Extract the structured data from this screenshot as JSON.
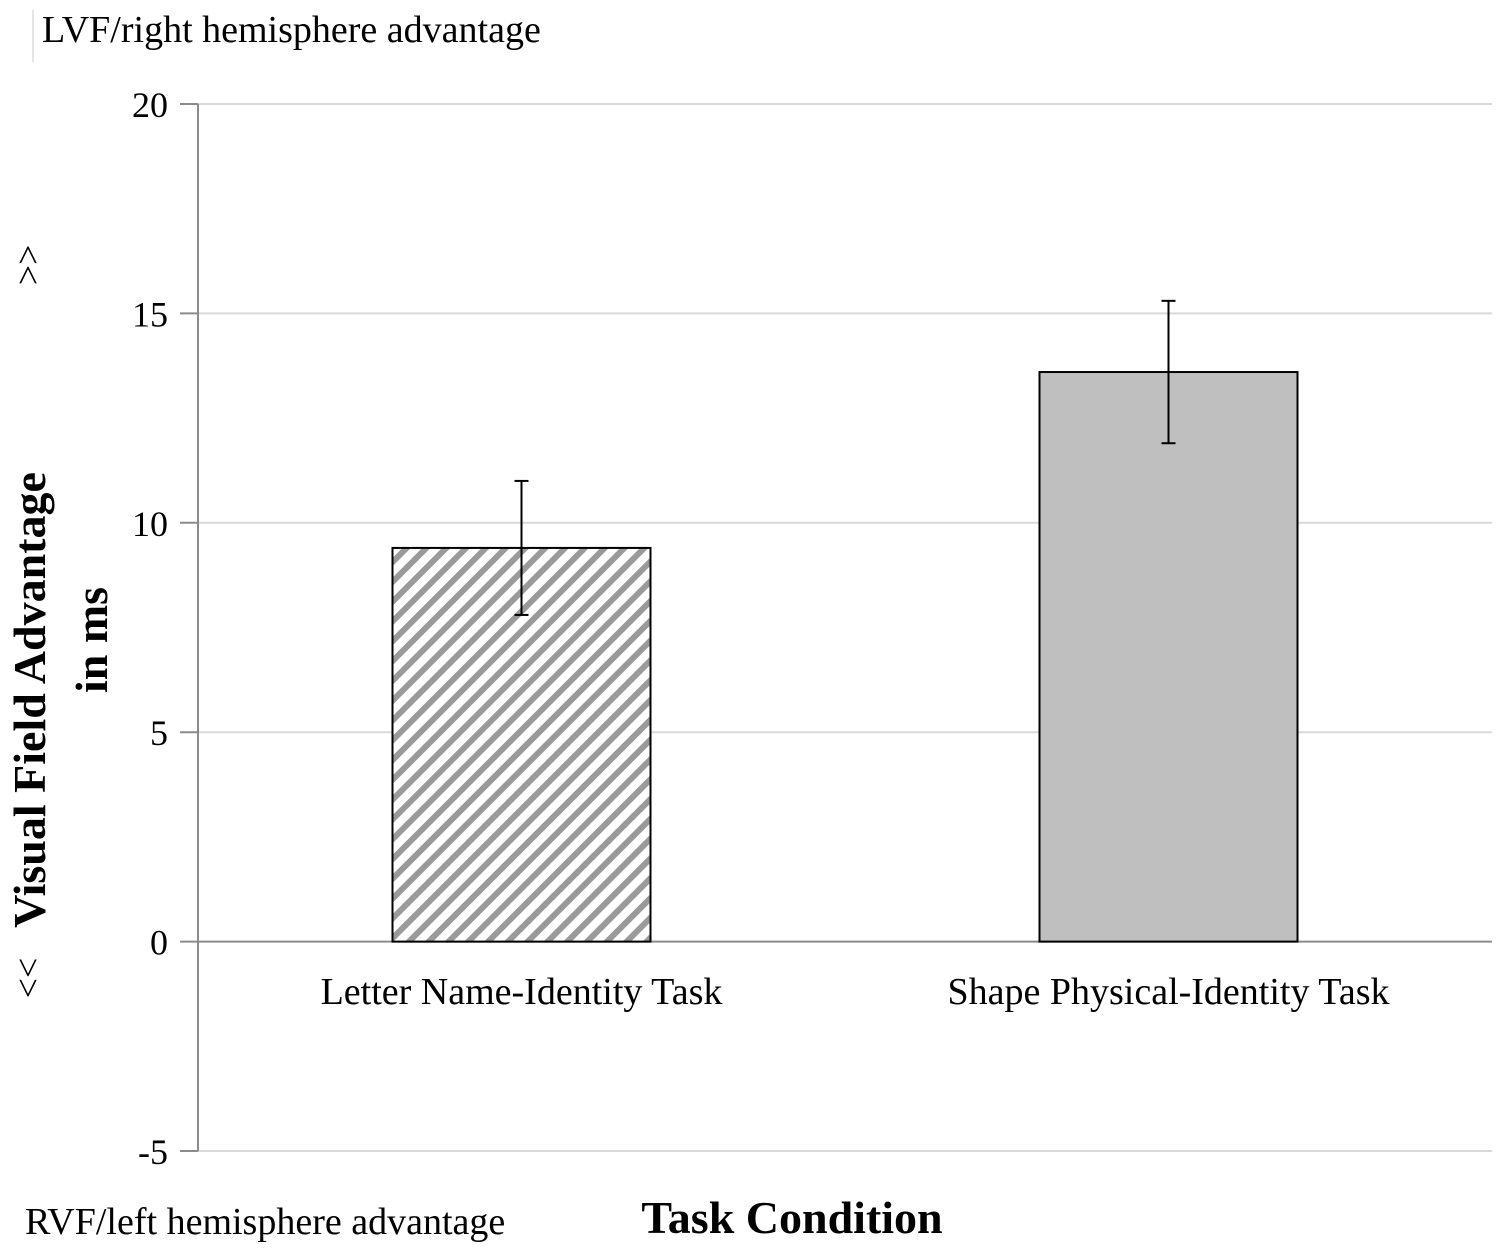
{
  "chart_data": {
    "type": "bar",
    "categories": [
      "Letter Name-Identity Task",
      "Shape Physical-Identity Task"
    ],
    "values": [
      9.4,
      13.6
    ],
    "error": [
      1.6,
      1.7
    ],
    "fills": [
      "hatched",
      "#bfbfbf"
    ],
    "xlabel": "Task Condition",
    "ylabel_line1": "Visual Field Advantage",
    "ylabel_line2": "in ms",
    "ylabel_arrow_up": ">>",
    "ylabel_arrow_down": "<<",
    "top_annotation": "LVF/right hemisphere advantage",
    "bottom_annotation": "RVF/left hemisphere advantage",
    "ylim": [
      -5,
      20
    ],
    "yticks": [
      -5,
      0,
      5,
      10,
      15,
      20
    ],
    "grid": true
  }
}
